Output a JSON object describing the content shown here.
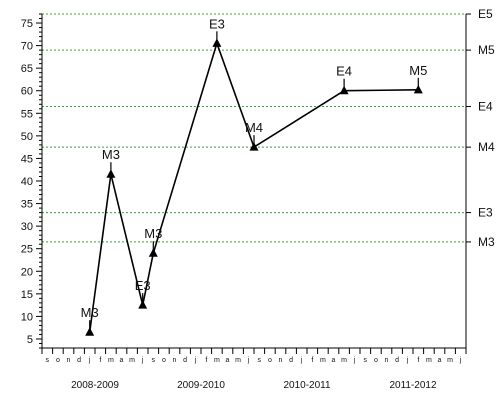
{
  "chart_data": {
    "type": "line",
    "title": "",
    "xlabel": "",
    "ylabel": "",
    "ylim": [
      3,
      77
    ],
    "y_ticks": [
      5,
      10,
      15,
      20,
      25,
      30,
      35,
      40,
      45,
      50,
      55,
      60,
      65,
      70,
      75
    ],
    "grid": "dotted green horizontal reference lines",
    "month_ticks": [
      "s",
      "o",
      "n",
      "d",
      "j",
      "f",
      "m",
      "a",
      "m",
      "j",
      "s",
      "o",
      "n",
      "d",
      "j",
      "f",
      "m",
      "a",
      "m",
      "j",
      "s",
      "o",
      "n",
      "d",
      "j",
      "f",
      "m",
      "a",
      "m",
      "j",
      "s",
      "o",
      "n",
      "d",
      "j",
      "f",
      "m",
      "a",
      "m",
      "j"
    ],
    "periods": [
      "2008-2009",
      "2009-2010",
      "2010-2011",
      "2011-2012"
    ],
    "reference_lines": [
      {
        "label": "E5",
        "y": 77
      },
      {
        "label": "M5",
        "y": 69
      },
      {
        "label": "E4",
        "y": 56.5
      },
      {
        "label": "M4",
        "y": 47.5
      },
      {
        "label": "E3",
        "y": 33
      },
      {
        "label": "M3",
        "y": 26.5
      }
    ],
    "series": [
      {
        "points": [
          {
            "x": 4.5,
            "y": 6.5,
            "label": "M3"
          },
          {
            "x": 6.5,
            "y": 41.5,
            "label": "M3"
          },
          {
            "x": 9.5,
            "y": 12.5,
            "label": "E3"
          },
          {
            "x": 10.5,
            "y": 24,
            "label": "M3"
          },
          {
            "x": 16.5,
            "y": 70.5,
            "label": "E3"
          },
          {
            "x": 20,
            "y": 47.5,
            "label": "M4"
          },
          {
            "x": 28.5,
            "y": 60,
            "label": "E4"
          },
          {
            "x": 35.5,
            "y": 60.2,
            "label": "M5"
          }
        ],
        "color": "#000000"
      }
    ],
    "colors": {
      "grid": "#3aa33a",
      "line": "#000000",
      "axis": "#000000"
    }
  }
}
